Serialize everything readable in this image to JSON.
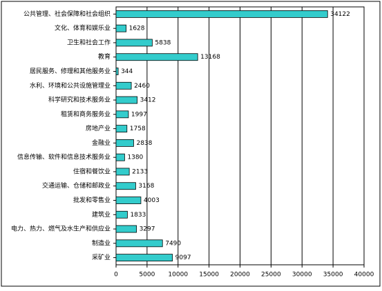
{
  "chart_data": {
    "type": "bar",
    "orientation": "horizontal",
    "categories": [
      "公共管理、社会保障和社会组织",
      "文化、体育和娱乐业",
      "卫生和社会工作",
      "教育",
      "居民服务、修理和其他服务业",
      "水利、环境和公共设施管理业",
      "科学研究和技术服务业",
      "租赁和商务服务业",
      "房地产业",
      "金融业",
      "信息传输、软件和信息技术服务业",
      "住宿和餐饮业",
      "交通运输、仓储和邮政业",
      "批发和零售业",
      "建筑业",
      "电力、热力、燃气及水生产和供应业",
      "制造业",
      "采矿业"
    ],
    "values": [
      34122,
      1628,
      5838,
      13168,
      344,
      2460,
      3412,
      1997,
      1758,
      2838,
      1380,
      2133,
      3168,
      4003,
      1833,
      3297,
      7490,
      9097
    ],
    "color": "#33cccc",
    "xlim": [
      0,
      40000
    ],
    "xticks": [
      0,
      5000,
      10000,
      15000,
      20000,
      25000,
      30000,
      35000,
      40000
    ],
    "grid": true
  }
}
